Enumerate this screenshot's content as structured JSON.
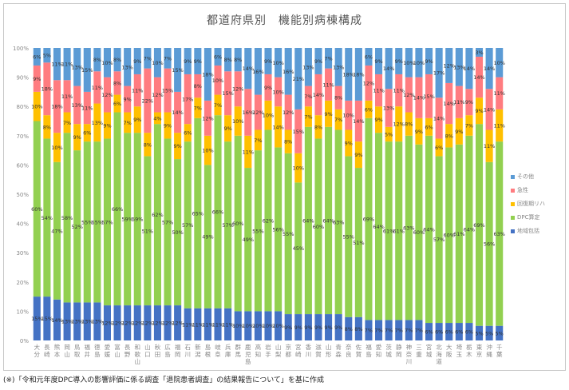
{
  "chart_data": {
    "type": "bar",
    "stacked": true,
    "percent_stacked": true,
    "title": "都道府県別　機能別病棟構成",
    "xlabel": "",
    "ylabel": "",
    "ylim": [
      0,
      100
    ],
    "yticks": [
      "0%",
      "10%",
      "20%",
      "30%",
      "40%",
      "50%",
      "60%",
      "70%",
      "80%",
      "90%",
      "100%"
    ],
    "legend_position": "right",
    "categories": [
      "大分",
      "長崎",
      "熊本",
      "岡山",
      "鳥取",
      "福井",
      "徳島",
      "愛媛",
      "富山",
      "長野",
      "和歌山",
      "山口",
      "秋田",
      "広島",
      "福岡",
      "石川",
      "新潟",
      "島根",
      "岐阜",
      "兵庫",
      "群馬",
      "鹿児島",
      "高知",
      "岩手",
      "山梨",
      "京都",
      "宮崎",
      "香川",
      "滋賀",
      "山形",
      "青森",
      "奈良",
      "佐賀",
      "福島",
      "愛知",
      "茨城",
      "静岡",
      "神奈川",
      "三重",
      "宮城",
      "北海道",
      "大阪",
      "埼玉",
      "栃木",
      "東京",
      "沖縄",
      "千葉"
    ],
    "series": [
      {
        "name": "地域包括",
        "color": "#4472C4",
        "values": [
          15,
          15,
          14,
          13,
          13,
          13,
          13,
          12,
          12,
          12,
          12,
          12,
          12,
          12,
          12,
          11,
          11,
          11,
          11,
          11,
          10,
          10,
          10,
          10,
          10,
          9,
          9,
          9,
          9,
          9,
          9,
          8,
          8,
          7,
          7,
          7,
          7,
          7,
          7,
          6,
          6,
          6,
          6,
          6,
          5,
          5,
          5
        ]
      },
      {
        "name": "DPC算定",
        "color": "#92D050",
        "values": [
          60,
          54,
          47,
          58,
          52,
          55,
          55,
          57,
          66,
          59,
          59,
          51,
          62,
          57,
          50,
          57,
          65,
          49,
          66,
          57,
          60,
          49,
          55,
          62,
          56,
          55,
          45,
          64,
          60,
          64,
          63,
          55,
          51,
          69,
          64,
          61,
          61,
          63,
          60,
          64,
          57,
          60,
          61,
          64,
          69,
          56,
          63
        ]
      },
      {
        "name": "回復期リハ",
        "color": "#FFC000",
        "values": [
          10,
          8,
          10,
          7,
          9,
          6,
          13,
          9,
          6,
          7,
          9,
          8,
          4,
          9,
          9,
          6,
          7,
          10,
          7,
          9,
          10,
          11,
          7,
          10,
          14,
          8,
          10,
          7,
          8,
          9,
          7,
          9,
          9,
          6,
          9,
          5,
          12,
          8,
          9,
          6,
          6,
          8,
          9,
          7,
          9,
          11,
          11
        ]
      },
      {
        "name": "急性",
        "color": "#FF7C80",
        "values": [
          9,
          18,
          18,
          11,
          13,
          11,
          11,
          12,
          8,
          9,
          11,
          22,
          12,
          15,
          14,
          17,
          8,
          12,
          10,
          15,
          12,
          16,
          12,
          9,
          10,
          12,
          15,
          7,
          14,
          11,
          8,
          10,
          14,
          12,
          11,
          13,
          11,
          12,
          14,
          15,
          14,
          14,
          11,
          9,
          14,
          14,
          11
        ]
      },
      {
        "name": "その他",
        "color": "#5B9BD5",
        "values": [
          6,
          5,
          11,
          11,
          13,
          15,
          8,
          10,
          8,
          13,
          9,
          7,
          10,
          7,
          15,
          9,
          9,
          18,
          6,
          8,
          8,
          14,
          16,
          9,
          10,
          16,
          21,
          13,
          9,
          7,
          13,
          18,
          18,
          6,
          9,
          14,
          9,
          10,
          10,
          9,
          17,
          12,
          13,
          14,
          3,
          14,
          10
        ]
      }
    ]
  },
  "footer": {
    "note": "(※)「令和元年度DPC導入の影響評価に係る調査「退院患者調査」の結果報告について」を基に作成"
  }
}
